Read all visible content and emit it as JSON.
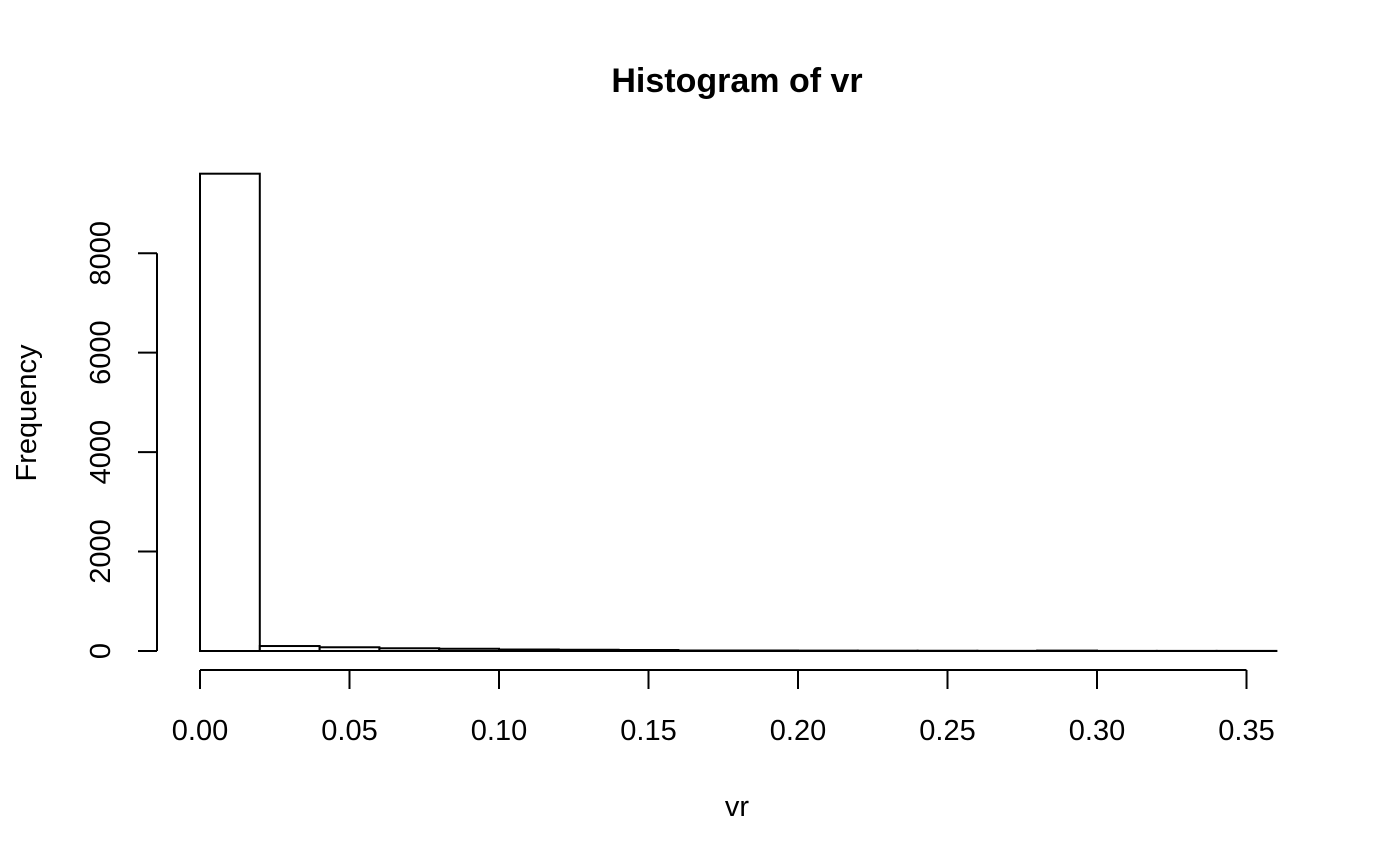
{
  "chart_data": {
    "type": "bar",
    "title": "Histogram of vr",
    "xlabel": "vr",
    "ylabel": "Frequency",
    "bin_width": 0.02,
    "bins": [
      {
        "start": 0.0,
        "end": 0.02,
        "count": 9600
      },
      {
        "start": 0.02,
        "end": 0.04,
        "count": 100
      },
      {
        "start": 0.04,
        "end": 0.06,
        "count": 75
      },
      {
        "start": 0.06,
        "end": 0.08,
        "count": 55
      },
      {
        "start": 0.08,
        "end": 0.1,
        "count": 45
      },
      {
        "start": 0.1,
        "end": 0.12,
        "count": 30
      },
      {
        "start": 0.12,
        "end": 0.14,
        "count": 25
      },
      {
        "start": 0.14,
        "end": 0.16,
        "count": 20
      },
      {
        "start": 0.16,
        "end": 0.18,
        "count": 10
      },
      {
        "start": 0.18,
        "end": 0.2,
        "count": 10
      },
      {
        "start": 0.2,
        "end": 0.22,
        "count": 8
      },
      {
        "start": 0.22,
        "end": 0.24,
        "count": 6
      },
      {
        "start": 0.24,
        "end": 0.26,
        "count": 5
      },
      {
        "start": 0.26,
        "end": 0.28,
        "count": 3
      },
      {
        "start": 0.28,
        "end": 0.3,
        "count": 8
      },
      {
        "start": 0.3,
        "end": 0.32,
        "count": 2
      },
      {
        "start": 0.32,
        "end": 0.34,
        "count": 2
      },
      {
        "start": 0.34,
        "end": 0.36,
        "count": 2
      }
    ],
    "x_ticks": [
      {
        "value": 0.0,
        "label": "0.00"
      },
      {
        "value": 0.05,
        "label": "0.05"
      },
      {
        "value": 0.1,
        "label": "0.10"
      },
      {
        "value": 0.15,
        "label": "0.15"
      },
      {
        "value": 0.2,
        "label": "0.20"
      },
      {
        "value": 0.25,
        "label": "0.25"
      },
      {
        "value": 0.3,
        "label": "0.30"
      },
      {
        "value": 0.35,
        "label": "0.35"
      }
    ],
    "y_ticks": [
      {
        "value": 0,
        "label": "0"
      },
      {
        "value": 2000,
        "label": "2000"
      },
      {
        "value": 4000,
        "label": "4000"
      },
      {
        "value": 6000,
        "label": "6000"
      },
      {
        "value": 8000,
        "label": "8000"
      }
    ],
    "xlim": [
      0.0,
      0.36
    ],
    "ylim": [
      0,
      9600
    ],
    "grid": false,
    "legend": "none"
  }
}
